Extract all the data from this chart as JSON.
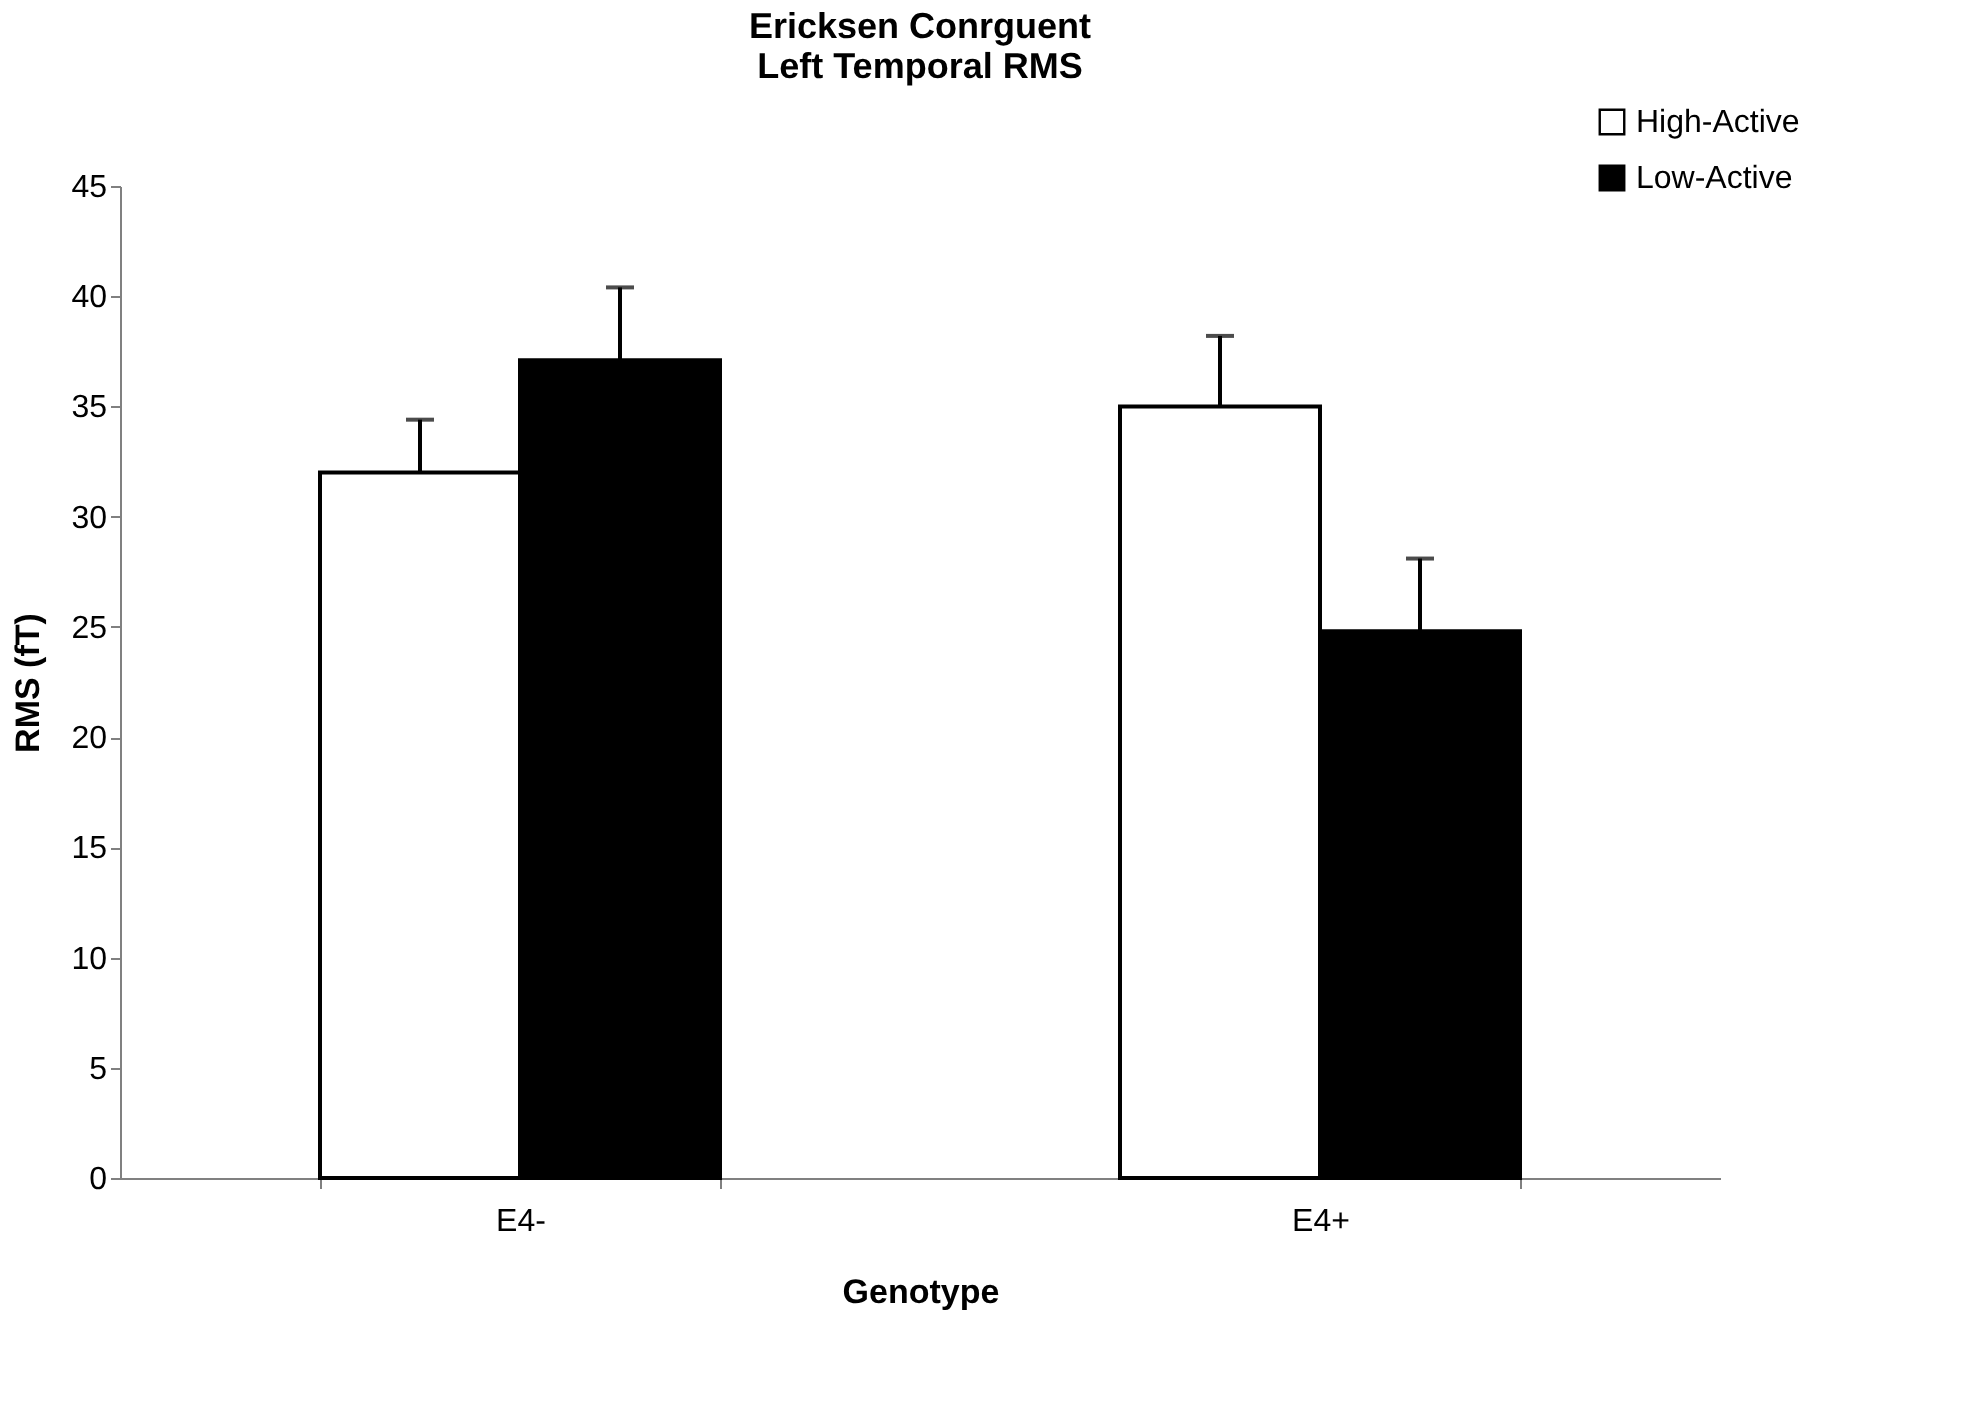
{
  "chart_data": {
    "type": "bar",
    "title": [
      "Ericksen Conrguent",
      "Left Temporal RMS"
    ],
    "xlabel": "Genotype",
    "ylabel": "RMS (fT)",
    "categories": [
      "E4-",
      "E4+"
    ],
    "series": [
      {
        "name": "High-Active",
        "color": "#ffffff",
        "values": [
          32.0,
          35.0
        ],
        "errors": [
          [
            32.0,
            34.4
          ],
          [
            35.0,
            38.2
          ]
        ]
      },
      {
        "name": "Low-Active",
        "color": "#000000",
        "values": [
          37.1,
          24.8
        ],
        "errors": [
          [
            37.1,
            40.4
          ],
          [
            24.8,
            28.1
          ]
        ]
      }
    ],
    "ylim": [
      0,
      45
    ],
    "yticks": [
      0,
      5,
      10,
      15,
      20,
      25,
      30,
      35,
      40,
      45
    ],
    "grid": false,
    "legend": "top right"
  }
}
